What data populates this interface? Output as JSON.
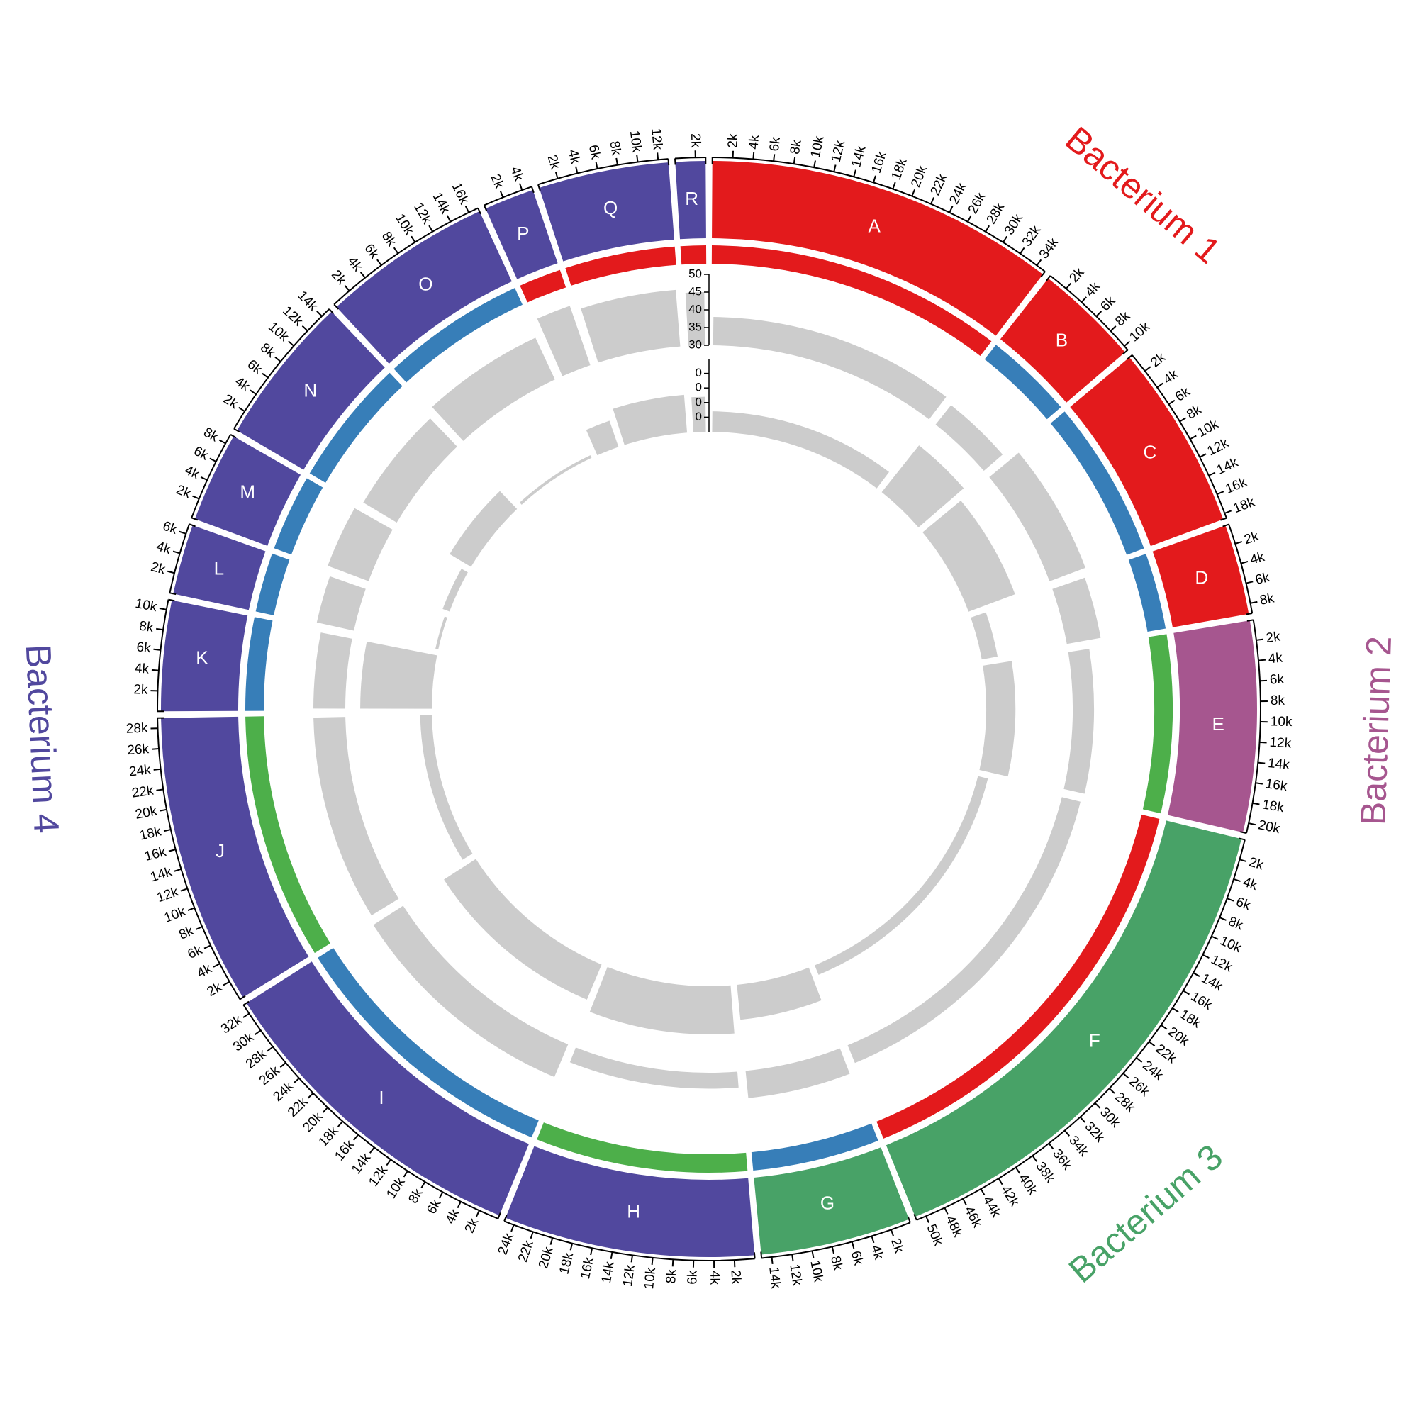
{
  "chart_data": {
    "type": "circos",
    "ticks": [
      {
        "value": 2000,
        "label": "2k"
      },
      {
        "value": 4000,
        "label": "4k"
      },
      {
        "value": 6000,
        "label": "6k"
      },
      {
        "value": 8000,
        "label": "8k"
      },
      {
        "value": 10000,
        "label": "10k"
      },
      {
        "value": 12000,
        "label": "12k"
      },
      {
        "value": 14000,
        "label": "14k"
      },
      {
        "value": 16000,
        "label": "16k"
      },
      {
        "value": 18000,
        "label": "18k"
      },
      {
        "value": 20000,
        "label": "20k"
      },
      {
        "value": 22000,
        "label": "22k"
      },
      {
        "value": 24000,
        "label": "24k"
      },
      {
        "value": 26000,
        "label": "26k"
      },
      {
        "value": 28000,
        "label": "28k"
      },
      {
        "value": 30000,
        "label": "30k"
      },
      {
        "value": 32000,
        "label": "32k"
      },
      {
        "value": 34000,
        "label": "34k"
      },
      {
        "value": 36000,
        "label": "36k"
      },
      {
        "value": 38000,
        "label": "38k"
      },
      {
        "value": 40000,
        "label": "40k"
      },
      {
        "value": 42000,
        "label": "42k"
      },
      {
        "value": 44000,
        "label": "44k"
      },
      {
        "value": 46000,
        "label": "46k"
      },
      {
        "value": 48000,
        "label": "48k"
      },
      {
        "value": 50000,
        "label": "50k"
      }
    ],
    "tracks": [
      {
        "color": "#cccccc",
        "ylim": [
          30,
          50
        ],
        "yticks": [
          30,
          35,
          40,
          45,
          50
        ]
      },
      {
        "color": "#cccccc",
        "ylim": [
          0,
          0.5
        ],
        "yticks": [
          {
            "value": 0.1,
            "label": "0"
          },
          {
            "value": 0.2,
            "label": "0"
          },
          {
            "value": 0.3,
            "label": "0"
          },
          {
            "value": 0.4,
            "label": "0"
          }
        ]
      }
    ],
    "groups": [
      {
        "name": "Bacterium 1",
        "color": "#e31a1c",
        "segments": [
          {
            "name": "A",
            "length": 35000,
            "band_color": "#e31a1c",
            "tracks": [
              38,
              0.14
            ]
          },
          {
            "name": "B",
            "length": 10500,
            "band_color": "#377eb8",
            "tracks": [
              37,
              0.41
            ]
          },
          {
            "name": "C",
            "length": 18500,
            "band_color": "#377eb8",
            "tracks": [
              40.8,
              0.34
            ]
          },
          {
            "name": "D",
            "length": 9000,
            "band_color": "#377eb8",
            "tracks": [
              39.7,
              0.11
            ]
          }
        ]
      },
      {
        "name": "Bacterium 2",
        "color": "#a6568f",
        "segments": [
          {
            "name": "E",
            "length": 21000,
            "band_color": "#4daf4a",
            "tracks": [
              36,
              0.2
            ]
          }
        ]
      },
      {
        "name": "Bacterium 3",
        "color": "#48a267",
        "segments": [
          {
            "name": "F",
            "length": 51000,
            "band_color": "#e31a1c",
            "tracks": [
              35.4,
              0.07
            ]
          },
          {
            "name": "G",
            "length": 15000,
            "band_color": "#377eb8",
            "tracks": [
              37.7,
              0.24
            ]
          }
        ]
      },
      {
        "name": "Bacterium 4",
        "color": "#51489e",
        "segments": [
          {
            "name": "H",
            "length": 25000,
            "band_color": "#4daf4a",
            "tracks": [
              34.5,
              0.33
            ]
          },
          {
            "name": "I",
            "length": 33000,
            "band_color": "#377eb8",
            "tracks": [
              40,
              0.26
            ]
          },
          {
            "name": "J",
            "length": 29000,
            "band_color": "#4daf4a",
            "tracks": [
              39,
              0.08
            ]
          },
          {
            "name": "K",
            "length": 11000,
            "band_color": "#377eb8",
            "tracks": [
              39,
              0.49
            ]
          },
          {
            "name": "L",
            "length": 7000,
            "band_color": "#377eb8",
            "tracks": [
              40.7,
              0.02
            ]
          },
          {
            "name": "M",
            "length": 9000,
            "band_color": "#377eb8",
            "tracks": [
              42.3,
              0.05
            ]
          },
          {
            "name": "N",
            "length": 15000,
            "band_color": "#377eb8",
            "tracks": [
              41,
              0.17
            ]
          },
          {
            "name": "O",
            "length": 17000,
            "band_color": "#377eb8",
            "tracks": [
              43,
              0.02
            ]
          },
          {
            "name": "P",
            "length": 5000,
            "band_color": "#e31a1c",
            "tracks": [
              47.7,
              0.19
            ]
          },
          {
            "name": "Q",
            "length": 13000,
            "band_color": "#e31a1c",
            "tracks": [
              46,
              0.26
            ]
          },
          {
            "name": "R",
            "length": 3000,
            "band_color": "#e31a1c",
            "tracks": [
              45,
              0.24
            ]
          }
        ]
      }
    ]
  }
}
